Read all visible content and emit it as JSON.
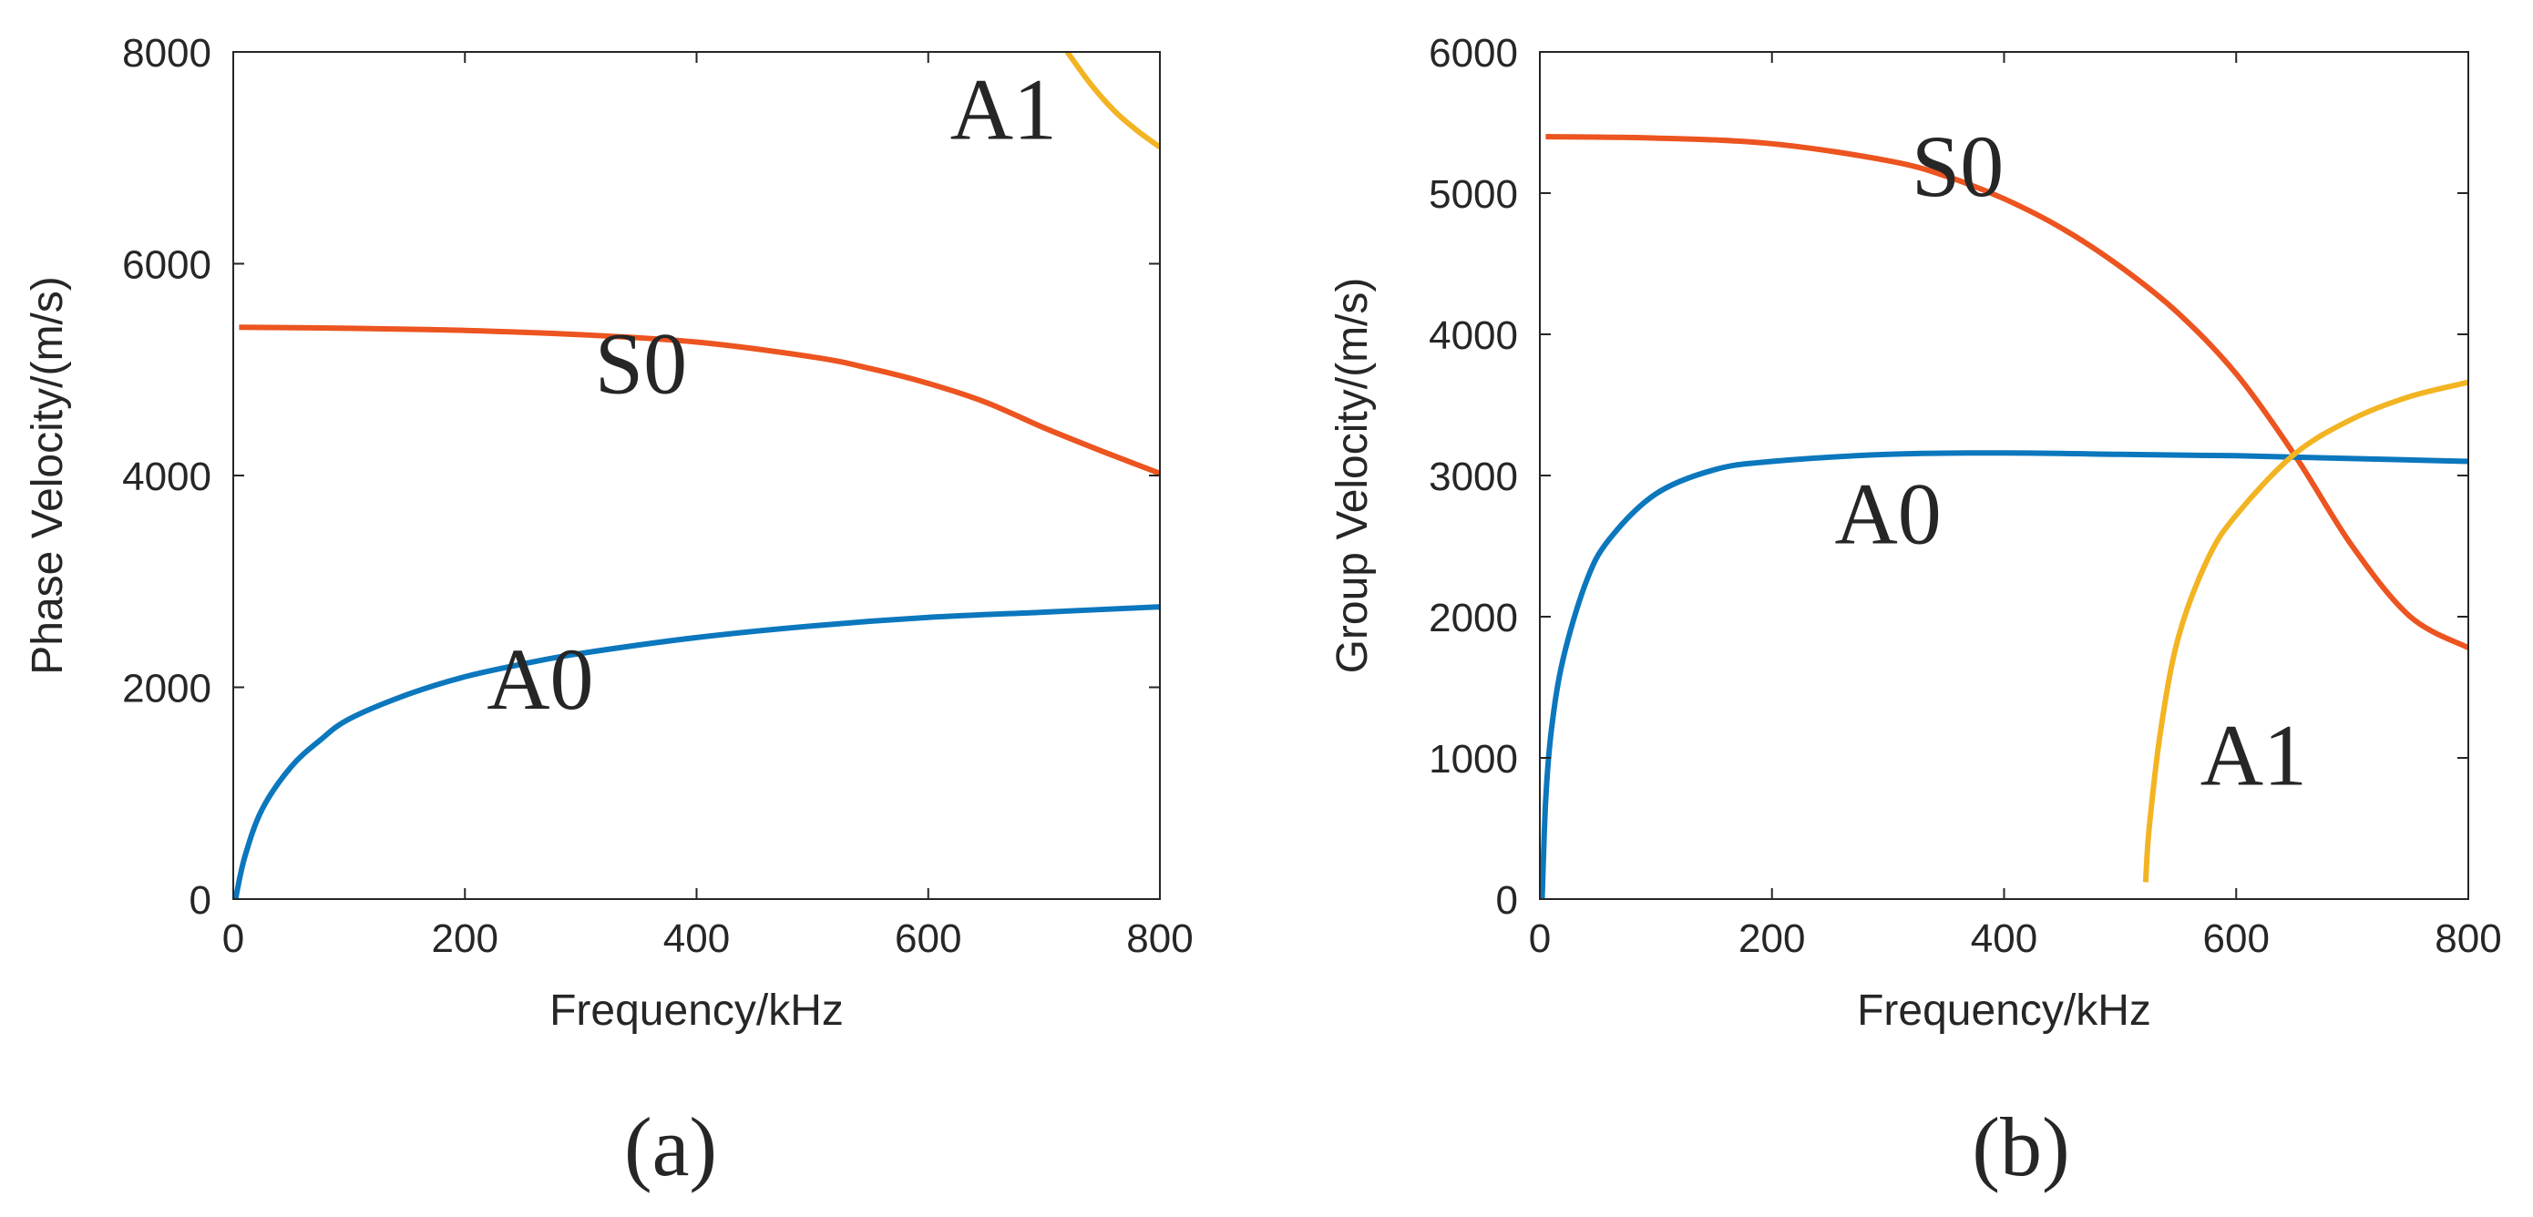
{
  "chart_data": [
    {
      "type": "line",
      "caption": "(a)",
      "xlabel": "Frequency/kHz",
      "ylabel": "Phase Velocity/(m/s)",
      "xlim": [
        0,
        800
      ],
      "ylim": [
        0,
        8000
      ],
      "xticks": [
        0,
        200,
        400,
        600,
        800
      ],
      "yticks": [
        0,
        2000,
        4000,
        6000,
        8000
      ],
      "grid": false,
      "series": [
        {
          "name": "S0",
          "color": "#ec5420",
          "x": [
            5,
            100,
            200,
            300,
            400,
            500,
            550,
            600,
            650,
            700,
            750,
            800
          ],
          "y": [
            5400,
            5390,
            5370,
            5330,
            5260,
            5120,
            5010,
            4870,
            4690,
            4450,
            4230,
            4020
          ]
        },
        {
          "name": "A0",
          "color": "#0b77bd",
          "x": [
            2,
            10,
            25,
            50,
            75,
            100,
            150,
            200,
            250,
            300,
            400,
            500,
            600,
            700,
            800
          ],
          "y": [
            0,
            400,
            850,
            1250,
            1500,
            1700,
            1930,
            2100,
            2220,
            2320,
            2470,
            2580,
            2660,
            2710,
            2760
          ]
        },
        {
          "name": "A1",
          "color": "#f2b422",
          "x": [
            720,
            740,
            760,
            780,
            800
          ],
          "y": [
            8000,
            7700,
            7450,
            7260,
            7100
          ]
        }
      ],
      "curve_labels": [
        {
          "text": "A1",
          "x": 665,
          "y": 7470
        },
        {
          "text": "S0",
          "x": 352,
          "y": 5070
        },
        {
          "text": "A0",
          "x": 265,
          "y": 2090
        }
      ]
    },
    {
      "type": "line",
      "caption": "(b)",
      "xlabel": "Frequency/kHz",
      "ylabel": "Group Velocity/(m/s)",
      "xlim": [
        0,
        800
      ],
      "ylim": [
        0,
        6000
      ],
      "xticks": [
        0,
        200,
        400,
        600,
        800
      ],
      "yticks": [
        0,
        1000,
        2000,
        3000,
        4000,
        5000,
        6000
      ],
      "grid": false,
      "series": [
        {
          "name": "S0",
          "color": "#ec5420",
          "x": [
            5,
            100,
            200,
            300,
            350,
            400,
            450,
            500,
            550,
            600,
            650,
            700,
            750,
            800
          ],
          "y": [
            5400,
            5390,
            5350,
            5230,
            5120,
            4960,
            4750,
            4480,
            4150,
            3720,
            3150,
            2500,
            2000,
            1780
          ]
        },
        {
          "name": "A0",
          "color": "#0b77bd",
          "x": [
            2,
            5,
            10,
            20,
            40,
            60,
            100,
            150,
            200,
            300,
            400,
            500,
            600,
            700,
            800
          ],
          "y": [
            0,
            700,
            1200,
            1700,
            2250,
            2550,
            2870,
            3040,
            3100,
            3150,
            3160,
            3150,
            3140,
            3120,
            3100
          ]
        },
        {
          "name": "A1",
          "color": "#f2b422",
          "x": [
            522,
            525,
            535,
            550,
            575,
            600,
            650,
            700,
            750,
            800
          ],
          "y": [
            120,
            500,
            1200,
            1850,
            2400,
            2720,
            3150,
            3400,
            3560,
            3660
          ]
        }
      ],
      "curve_labels": [
        {
          "text": "S0",
          "x": 360,
          "y": 5200
        },
        {
          "text": "A0",
          "x": 300,
          "y": 2740
        },
        {
          "text": "A1",
          "x": 615,
          "y": 1030
        }
      ]
    }
  ]
}
